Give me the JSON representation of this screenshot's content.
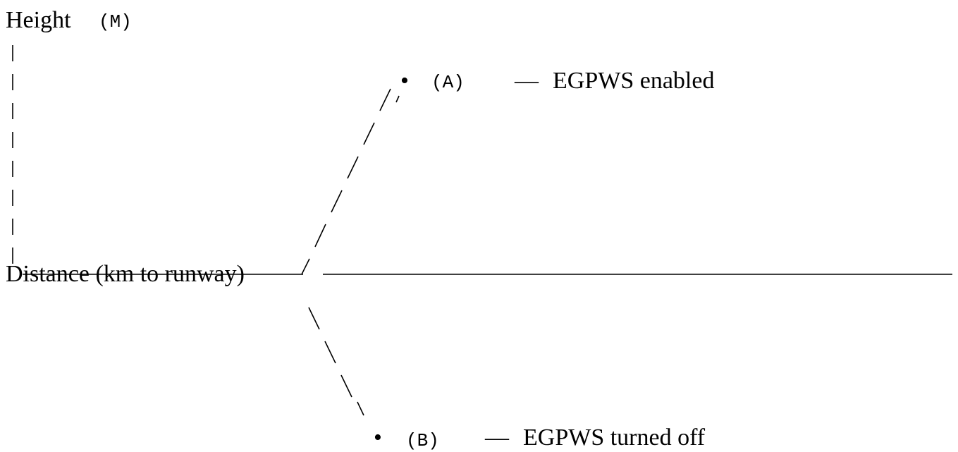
{
  "y_axis": {
    "label": "Height",
    "unit": "(M)"
  },
  "x_axis": {
    "label": "Distance (km to runway)"
  },
  "branches": [
    {
      "marker": "•",
      "id": "(A)",
      "dash": "—",
      "description": "EGPWS enabled"
    },
    {
      "marker": "•",
      "id": "(B)",
      "dash": "—",
      "description": "EGPWS turned off"
    }
  ],
  "colors": {
    "ink": "#000000",
    "background": "#ffffff"
  }
}
